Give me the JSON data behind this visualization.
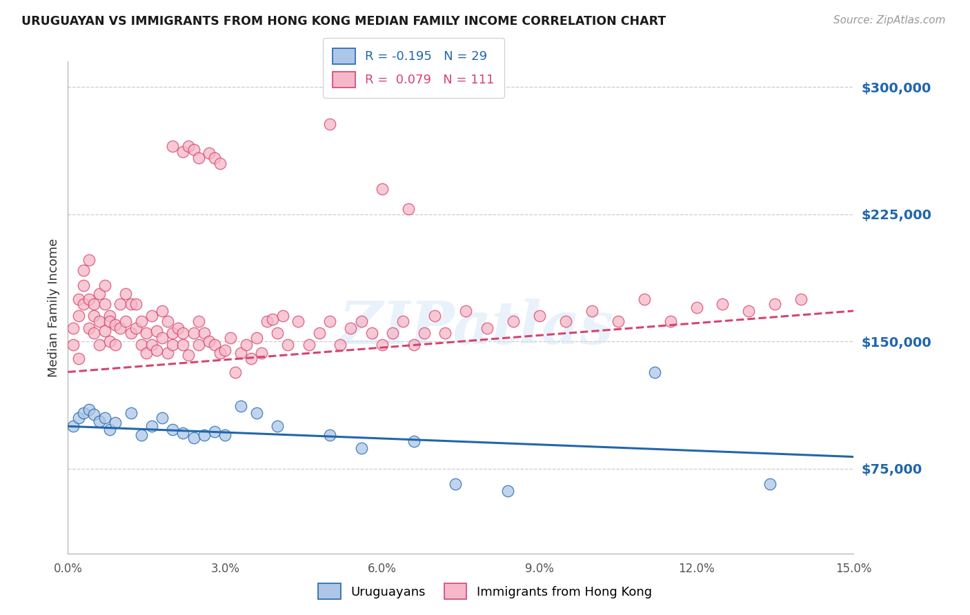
{
  "title": "URUGUAYAN VS IMMIGRANTS FROM HONG KONG MEDIAN FAMILY INCOME CORRELATION CHART",
  "source": "Source: ZipAtlas.com",
  "ylabel": "Median Family Income",
  "yticks": [
    75000,
    150000,
    225000,
    300000
  ],
  "ytick_labels": [
    "$75,000",
    "$150,000",
    "$225,000",
    "$300,000"
  ],
  "xmin": 0.0,
  "xmax": 0.15,
  "ymin": 25000,
  "ymax": 315000,
  "blue_R": "-0.195",
  "blue_N": "29",
  "pink_R": "0.079",
  "pink_N": "111",
  "blue_color": "#aec6e8",
  "pink_color": "#f5b8c8",
  "blue_line_color": "#2166ac",
  "pink_line_color": "#d6436e",
  "legend_label_blue": "Uruguayans",
  "legend_label_pink": "Immigrants from Hong Kong",
  "watermark": "ZIPatlas",
  "blue_trend": [
    100000,
    82000
  ],
  "pink_trend": [
    132000,
    168000
  ],
  "blue_scatter_x": [
    0.001,
    0.002,
    0.003,
    0.004,
    0.005,
    0.006,
    0.007,
    0.008,
    0.009,
    0.012,
    0.014,
    0.016,
    0.018,
    0.02,
    0.022,
    0.024,
    0.026,
    0.028,
    0.03,
    0.033,
    0.036,
    0.04,
    0.05,
    0.056,
    0.066,
    0.074,
    0.084,
    0.112,
    0.134
  ],
  "blue_scatter_y": [
    100000,
    105000,
    108000,
    110000,
    107000,
    103000,
    105000,
    98000,
    102000,
    108000,
    95000,
    100000,
    105000,
    98000,
    96000,
    93000,
    95000,
    97000,
    95000,
    112000,
    108000,
    100000,
    95000,
    87000,
    91000,
    66000,
    62000,
    132000,
    66000
  ],
  "pink_scatter_x": [
    0.001,
    0.001,
    0.002,
    0.002,
    0.002,
    0.003,
    0.003,
    0.003,
    0.004,
    0.004,
    0.004,
    0.005,
    0.005,
    0.005,
    0.006,
    0.006,
    0.006,
    0.007,
    0.007,
    0.007,
    0.008,
    0.008,
    0.008,
    0.009,
    0.009,
    0.01,
    0.01,
    0.011,
    0.011,
    0.012,
    0.012,
    0.013,
    0.013,
    0.014,
    0.014,
    0.015,
    0.015,
    0.016,
    0.016,
    0.017,
    0.017,
    0.018,
    0.018,
    0.019,
    0.019,
    0.02,
    0.02,
    0.021,
    0.022,
    0.022,
    0.023,
    0.024,
    0.025,
    0.025,
    0.026,
    0.027,
    0.028,
    0.029,
    0.03,
    0.031,
    0.032,
    0.033,
    0.034,
    0.035,
    0.036,
    0.037,
    0.038,
    0.039,
    0.04,
    0.041,
    0.042,
    0.044,
    0.046,
    0.048,
    0.05,
    0.052,
    0.054,
    0.056,
    0.058,
    0.06,
    0.062,
    0.064,
    0.066,
    0.068,
    0.07,
    0.072,
    0.076,
    0.08,
    0.085,
    0.09,
    0.095,
    0.1,
    0.105,
    0.11,
    0.115,
    0.12,
    0.125,
    0.13,
    0.135,
    0.14,
    0.02,
    0.022,
    0.023,
    0.024,
    0.025,
    0.027,
    0.028,
    0.029,
    0.05,
    0.06,
    0.065
  ],
  "pink_scatter_y": [
    148000,
    158000,
    165000,
    140000,
    175000,
    183000,
    172000,
    192000,
    198000,
    175000,
    158000,
    155000,
    165000,
    172000,
    178000,
    162000,
    148000,
    183000,
    156000,
    172000,
    165000,
    150000,
    162000,
    160000,
    148000,
    172000,
    158000,
    178000,
    162000,
    172000,
    155000,
    158000,
    172000,
    148000,
    162000,
    155000,
    143000,
    165000,
    148000,
    156000,
    145000,
    168000,
    152000,
    162000,
    143000,
    155000,
    148000,
    158000,
    155000,
    148000,
    142000,
    155000,
    148000,
    162000,
    155000,
    150000,
    148000,
    143000,
    145000,
    152000,
    132000,
    143000,
    148000,
    140000,
    152000,
    143000,
    162000,
    163000,
    155000,
    165000,
    148000,
    162000,
    148000,
    155000,
    162000,
    148000,
    158000,
    162000,
    155000,
    148000,
    155000,
    162000,
    148000,
    155000,
    165000,
    155000,
    168000,
    158000,
    162000,
    165000,
    162000,
    168000,
    162000,
    175000,
    162000,
    170000,
    172000,
    168000,
    172000,
    175000,
    265000,
    262000,
    265000,
    263000,
    258000,
    261000,
    258000,
    255000,
    278000,
    240000,
    228000
  ]
}
